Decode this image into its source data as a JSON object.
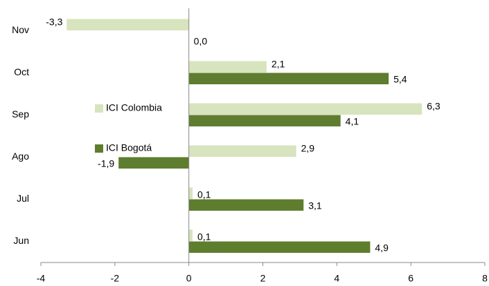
{
  "chart_data": {
    "type": "hbar",
    "categories": [
      "Nov",
      "Oct",
      "Sep",
      "Ago",
      "Jul",
      "Jun"
    ],
    "series": [
      {
        "name": "ICI Colombia",
        "color": "#d7e4bd",
        "values": [
          -3.3,
          2.1,
          6.3,
          2.9,
          0.1,
          0.1
        ],
        "value_labels": [
          "-3,3",
          "2,1",
          "6,3",
          "2,9",
          "0,1",
          "0,1"
        ]
      },
      {
        "name": "ICI Bogotá",
        "color": "#5e7d2e",
        "values": [
          0.0,
          5.4,
          4.1,
          -1.9,
          3.1,
          4.9
        ],
        "value_labels": [
          "0,0",
          "5,4",
          "4,1",
          "-1,9",
          "3,1",
          "4,9"
        ]
      }
    ],
    "xlim": [
      -4,
      8
    ],
    "xticks": [
      -4,
      -2,
      0,
      2,
      4,
      6,
      8
    ],
    "grid": false,
    "legend_position": "center-left"
  }
}
